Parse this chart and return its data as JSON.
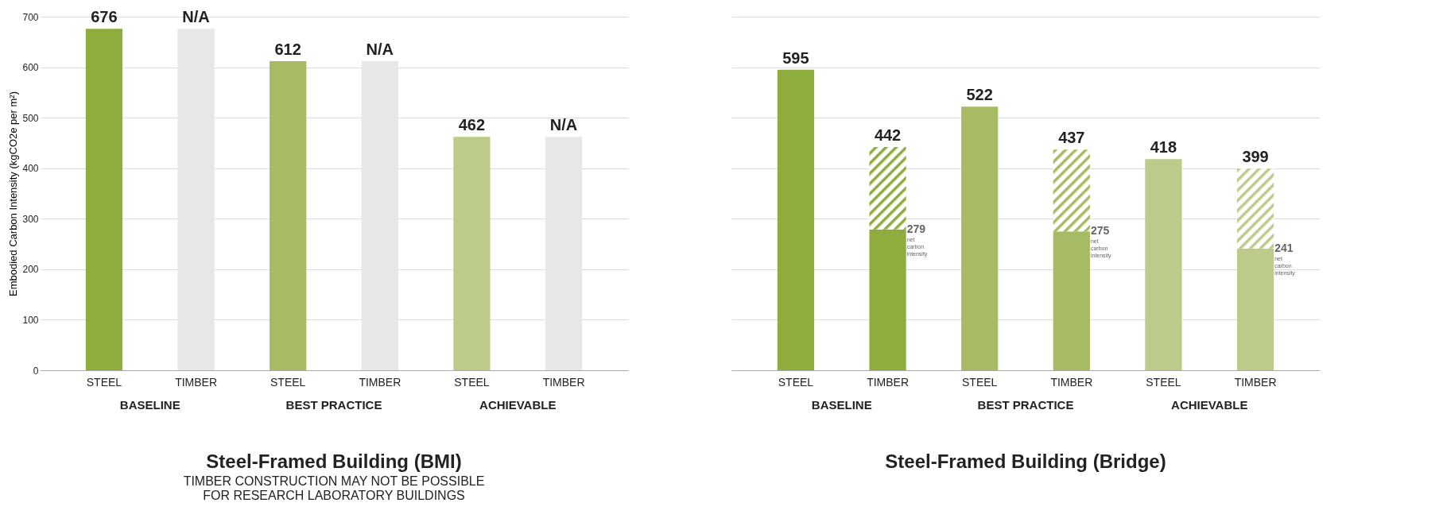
{
  "chart_data": [
    {
      "type": "bar",
      "title": "Steel-Framed Building (BMI)",
      "subtitle": "TIMBER CONSTRUCTION MAY NOT BE POSSIBLE FOR RESEARCH LABORATORY BUILDINGS",
      "ylabel": "Embodied Carbon Intensity (kgCO2e per m²)",
      "categories": [
        "STEEL",
        "TIMBER",
        "STEEL",
        "TIMBER",
        "STEEL",
        "TIMBER"
      ],
      "values": [
        676,
        676,
        612,
        612,
        462,
        462
      ],
      "colors": [
        "#8fad3c",
        "#e6e7e8",
        "#a6bb63",
        "#e6e7e8",
        "#bccb8a",
        "#e6e7e8"
      ],
      "value_labels": [
        "676",
        "N/A",
        "612",
        "N/A",
        "462",
        "N/A"
      ],
      "ylim": [
        0,
        700
      ],
      "yticks": [
        0,
        100,
        200,
        300,
        400,
        500,
        600,
        700
      ],
      "grid": "y",
      "annotations": [
        "BASELINE",
        "BEST PRACTICE",
        "ACHIEVABLE"
      ]
    },
    {
      "type": "bar",
      "title": "Steel-Framed Building (Bridge)",
      "categories": [
        "STEEL",
        "TIMBER",
        "STEEL",
        "TIMBER",
        "STEEL",
        "TIMBER"
      ],
      "stacked": true,
      "series": [
        {
          "values": [
            595,
            279,
            522,
            275,
            418,
            241
          ],
          "colors": [
            "#8fad3c",
            "#8fad3c",
            "#a6bb63",
            "#a6bb63",
            "#bccb8a",
            "#bccb8a"
          ],
          "value_labels": [
            "595",
            null,
            "522",
            null,
            "418",
            null
          ]
        },
        {
          "values": [
            null,
            163,
            null,
            162,
            null,
            158
          ],
          "colors": [
            null,
            "#8fad3c",
            null,
            "#a6bb63",
            null,
            "#bccb8a"
          ]
        }
      ],
      "totals": [
        null,
        "442",
        null,
        "437",
        null,
        "399"
      ],
      "ylim": [
        0,
        700
      ],
      "yticks": [
        0,
        100,
        200,
        300,
        400,
        500,
        600,
        700
      ],
      "grid": "y",
      "tick_labels": "x",
      "annotations": [
        "BASELINE",
        "BEST PRACTICE",
        "ACHIEVABLE",
        "279",
        "net carbon intensity",
        "275",
        "net carbon intensity",
        "241",
        "net carbon intensity"
      ]
    }
  ]
}
